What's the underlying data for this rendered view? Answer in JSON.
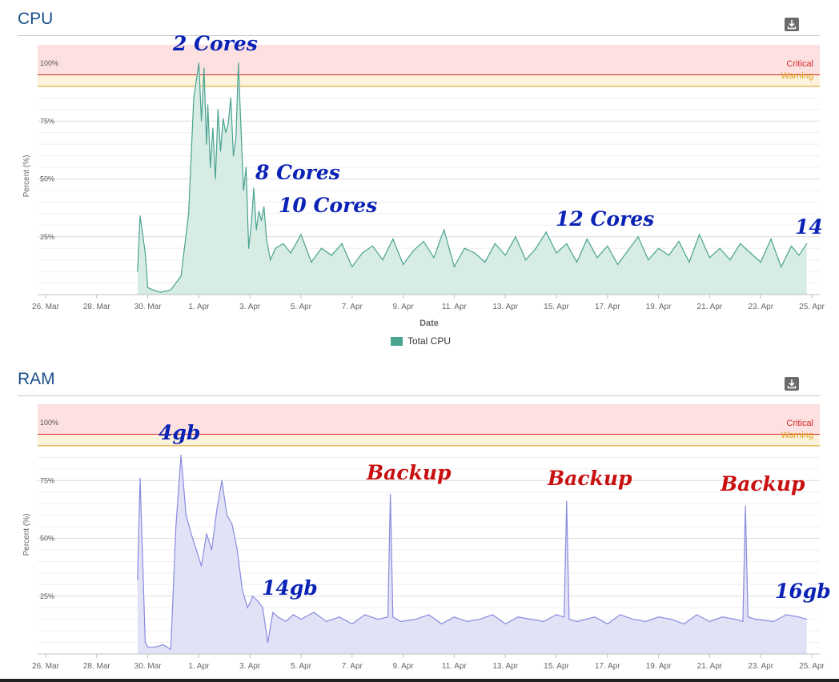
{
  "colors": {
    "cpu_line": "#4aa38f",
    "cpu_fill": "#d6ece5",
    "ram_line": "#8a8ae0",
    "ram_fill": "#e2e2f7",
    "critical": "#d32b2b",
    "critical_band": "#fde0e0",
    "warning": "#e0a01a",
    "warning_band": "#fdf2dc",
    "annotation_blue": "#0a22b5",
    "annotation_red": "#c81010"
  },
  "cpu": {
    "title": "CPU",
    "download_icon": "download-icon",
    "critical_label": "Critical",
    "warning_label": "Warning",
    "y_axis_label": "Percent (%)",
    "x_axis_label": "Date",
    "legend_label": "Total CPU",
    "annotations": [
      "2 Cores",
      "8 Cores",
      "10 Cores",
      "12 Cores",
      "14"
    ]
  },
  "ram": {
    "title": "RAM",
    "download_icon": "download-icon",
    "critical_label": "Critical",
    "warning_label": "Warning",
    "y_axis_label": "Percent (%)",
    "annotations": [
      "4gb",
      "14gb",
      "Backup",
      "Backup",
      "Backup",
      "16gb"
    ]
  },
  "chart_data": [
    {
      "type": "area",
      "title": "CPU",
      "xlabel": "Date",
      "ylabel": "Percent (%)",
      "x_ticks": [
        "26. Mar",
        "28. Mar",
        "30. Mar",
        "1. Apr",
        "3. Apr",
        "5. Apr",
        "7. Apr",
        "9. Apr",
        "11. Apr",
        "13. Apr",
        "15. Apr",
        "17. Apr",
        "19. Apr",
        "21. Apr",
        "23. Apr",
        "25. Apr"
      ],
      "y_ticks": [
        "25%",
        "50%",
        "75%",
        "100%"
      ],
      "ylim": [
        0,
        110
      ],
      "thresholds": [
        {
          "name": "Critical",
          "value": 95
        },
        {
          "name": "Warning",
          "value": 90
        }
      ],
      "legend": "bottom-center",
      "series": [
        {
          "name": "Total CPU",
          "x": [
            29.6,
            29.7,
            29.9,
            30.0,
            30.2,
            30.5,
            30.9,
            31.3,
            31.6,
            31.8,
            32.0,
            32.1,
            32.2,
            32.3,
            32.35,
            32.45,
            32.55,
            32.65,
            32.75,
            32.85,
            32.95,
            33.05,
            33.15,
            33.25,
            33.35,
            33.45,
            33.55,
            33.65,
            33.75,
            33.85,
            33.95,
            34.05,
            34.15,
            34.25,
            34.35,
            34.45,
            34.55,
            34.65,
            34.8,
            35.0,
            35.3,
            35.6,
            36.0,
            36.4,
            36.8,
            37.2,
            37.6,
            38.0,
            38.4,
            38.8,
            39.2,
            39.6,
            40.0,
            40.4,
            40.8,
            41.2,
            41.6,
            42.0,
            42.4,
            42.8,
            43.2,
            43.6,
            44.0,
            44.4,
            44.8,
            45.2,
            45.6,
            46.0,
            46.4,
            46.8,
            47.2,
            47.6,
            48.0,
            48.4,
            48.8,
            49.2,
            49.6,
            50.0,
            50.4,
            50.8,
            51.2,
            51.6,
            52.0,
            52.4,
            52.8,
            53.2,
            53.6,
            54.0,
            54.4,
            54.8,
            55.2,
            55.5,
            55.8
          ],
          "values": [
            10,
            34,
            18,
            3,
            2,
            1,
            2,
            8,
            35,
            85,
            100,
            75,
            98,
            65,
            82,
            55,
            72,
            50,
            80,
            62,
            76,
            70,
            74,
            85,
            60,
            68,
            100,
            72,
            45,
            55,
            20,
            30,
            46,
            28,
            36,
            32,
            38,
            24,
            15,
            20,
            22,
            18,
            26,
            14,
            20,
            17,
            22,
            12,
            18,
            21,
            15,
            24,
            13,
            19,
            23,
            16,
            28,
            12,
            20,
            18,
            14,
            22,
            17,
            25,
            15,
            20,
            27,
            18,
            22,
            14,
            24,
            16,
            21,
            13,
            19,
            25,
            15,
            20,
            17,
            23,
            14,
            26,
            16,
            20,
            15,
            22,
            18,
            14,
            24,
            12,
            21,
            17,
            22
          ]
        }
      ]
    },
    {
      "type": "area",
      "title": "RAM",
      "ylabel": "Percent (%)",
      "x_ticks": [
        "26. Mar",
        "28. Mar",
        "30. Mar",
        "1. Apr",
        "3. Apr",
        "5. Apr",
        "7. Apr",
        "9. Apr",
        "11. Apr",
        "13. Apr",
        "15. Apr",
        "17. Apr",
        "19. Apr",
        "21. Apr",
        "23. Apr",
        "25. Apr"
      ],
      "y_ticks": [
        "25%",
        "50%",
        "75%",
        "100%"
      ],
      "ylim": [
        0,
        110
      ],
      "thresholds": [
        {
          "name": "Critical",
          "value": 95
        },
        {
          "name": "Warning",
          "value": 90
        }
      ],
      "series": [
        {
          "name": "RAM",
          "x": [
            29.6,
            29.7,
            29.9,
            30.0,
            30.3,
            30.6,
            30.9,
            31.1,
            31.3,
            31.5,
            31.7,
            31.9,
            32.1,
            32.3,
            32.5,
            32.7,
            32.9,
            33.1,
            33.3,
            33.5,
            33.7,
            33.9,
            34.0,
            34.1,
            34.3,
            34.5,
            34.7,
            34.9,
            35.1,
            35.4,
            35.7,
            36.0,
            36.5,
            37.0,
            37.5,
            38.0,
            38.5,
            39.0,
            39.4,
            39.5,
            39.6,
            39.9,
            40.5,
            41.0,
            41.5,
            42.0,
            42.5,
            43.0,
            43.5,
            44.0,
            44.5,
            45.0,
            45.5,
            46.0,
            46.3,
            46.4,
            46.5,
            46.8,
            47.5,
            48.0,
            48.5,
            49.0,
            49.5,
            50.0,
            50.5,
            51.0,
            51.5,
            52.0,
            52.5,
            53.0,
            53.3,
            53.4,
            53.5,
            53.8,
            54.5,
            55.0,
            55.5,
            55.8
          ],
          "values": [
            32,
            76,
            5,
            3,
            3,
            4,
            2,
            55,
            86,
            60,
            52,
            45,
            38,
            52,
            45,
            62,
            75,
            60,
            56,
            45,
            28,
            20,
            22,
            25,
            23,
            20,
            5,
            18,
            16,
            14,
            17,
            15,
            18,
            14,
            16,
            13,
            17,
            15,
            16,
            69,
            16,
            14,
            15,
            17,
            13,
            16,
            14,
            15,
            17,
            13,
            16,
            15,
            14,
            17,
            16,
            66,
            15,
            14,
            16,
            13,
            17,
            15,
            14,
            16,
            15,
            13,
            17,
            14,
            16,
            15,
            14,
            64,
            16,
            15,
            14,
            17,
            16,
            15
          ]
        }
      ]
    }
  ]
}
